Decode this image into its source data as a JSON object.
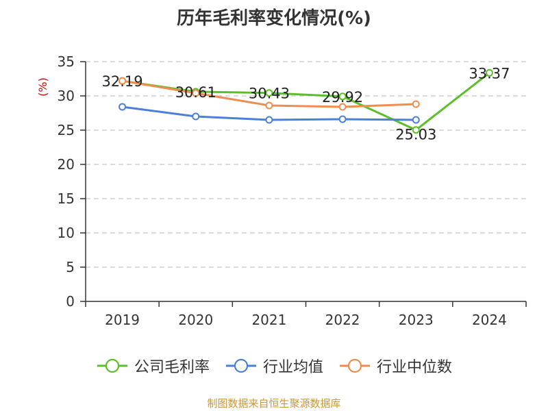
{
  "chart_data": {
    "type": "line",
    "title": "历年毛利率变化情况(%)",
    "ylabel": "(%)",
    "xlabel": "",
    "categories": [
      "2019",
      "2020",
      "2021",
      "2022",
      "2023",
      "2024"
    ],
    "yticks": [
      "0",
      "5",
      "10",
      "15",
      "20",
      "25",
      "30",
      "35"
    ],
    "ylim": [
      0,
      35
    ],
    "grid": true,
    "legend_position": "bottom",
    "series": [
      {
        "name": "公司毛利率",
        "color": "#5cbf2a",
        "values": [
          32.19,
          30.61,
          30.43,
          29.92,
          25.03,
          33.37
        ],
        "labels": [
          "32.19",
          "30.61",
          "30.43",
          "29.92",
          "25.03",
          "33.37"
        ]
      },
      {
        "name": "行业均值",
        "color": "#4a7fdb",
        "values": [
          28.4,
          27.0,
          26.5,
          26.6,
          26.5,
          null
        ]
      },
      {
        "name": "行业中位数",
        "color": "#f08c4e",
        "values": [
          32.2,
          30.4,
          28.6,
          28.4,
          28.8,
          null
        ]
      }
    ]
  },
  "footer": "制图数据来自恒生聚源数据库"
}
